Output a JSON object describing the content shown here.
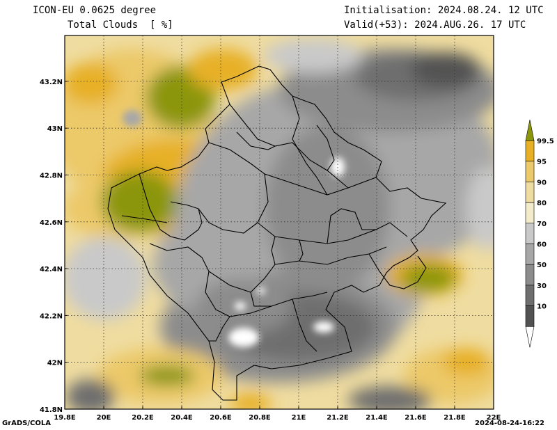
{
  "header": {
    "model": "ICON-EU 0.0625 degree",
    "variable": "Total Clouds  [ %]",
    "initialisation": "Initialisation: 2024.08.24. 12 UTC",
    "valid": "Valid(+53): 2024.AUG.26. 17 UTC"
  },
  "map": {
    "lat_labels": [
      "43.2N",
      "43N",
      "42.8N",
      "42.6N",
      "42.4N",
      "42.2N",
      "42N",
      "41.8N"
    ],
    "lat_values": [
      43.2,
      43.0,
      42.8,
      42.6,
      42.4,
      42.2,
      42.0,
      41.8
    ],
    "lon_labels": [
      "19.8E",
      "20E",
      "20.2E",
      "20.4E",
      "20.6E",
      "20.8E",
      "21E",
      "21.2E",
      "21.4E",
      "21.6E",
      "21.8E",
      "22E"
    ],
    "lon_values": [
      19.8,
      20.0,
      20.2,
      20.4,
      20.6,
      20.8,
      21.0,
      21.2,
      21.4,
      21.6,
      21.8,
      22.0
    ],
    "lon_range": [
      19.8,
      22.0
    ],
    "lat_range": [
      41.8,
      43.4
    ],
    "gridlines": "dotted",
    "unit": "%"
  },
  "colorbar": {
    "levels": [
      "99.5",
      "95",
      "90",
      "80",
      "70",
      "60",
      "50",
      "30",
      "10"
    ],
    "colors": [
      "#8c960a",
      "#e7b025",
      "#ecc969",
      "#efdca0",
      "#f2ecca",
      "#c9c9c9",
      "#a7a7a7",
      "#8c8c8c",
      "#6e6e6e",
      "#525252",
      "#ffffff"
    ],
    "placement": "right"
  },
  "footer": {
    "credit": "GrADS/COLA",
    "timestamp": "2024-08-24-16:22"
  }
}
